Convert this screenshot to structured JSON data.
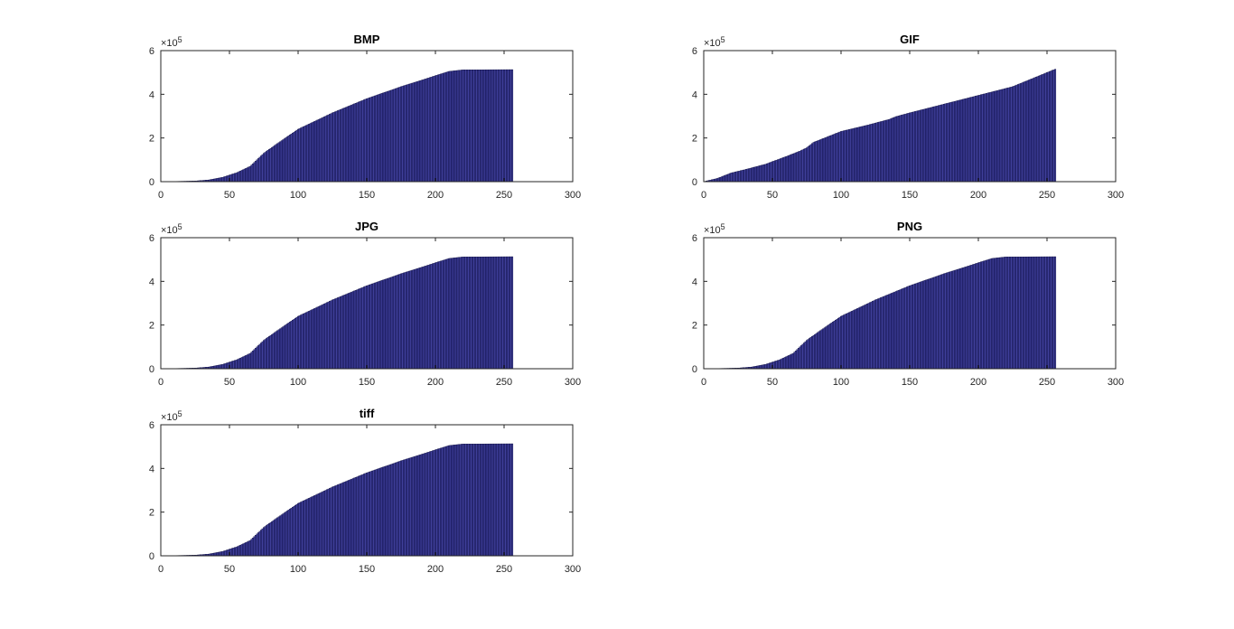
{
  "colors": {
    "bar_fill": "#3f3f9a",
    "bar_edge": "#000033",
    "axes": "#262626",
    "background": "#ffffff"
  },
  "chart_data": [
    {
      "type": "bar",
      "title": "BMP",
      "xlim": [
        0,
        300
      ],
      "ylim": [
        0,
        600000
      ],
      "xticks": [
        "0",
        "50",
        "100",
        "150",
        "200",
        "250",
        "300"
      ],
      "yticks": [
        "0",
        "2",
        "4",
        "6"
      ],
      "y_exponent_label": "×10",
      "y_exponent_power": "5",
      "grid": false,
      "bins": 256,
      "curve_points": [
        [
          0,
          0
        ],
        [
          25,
          3000
        ],
        [
          35,
          8000
        ],
        [
          45,
          20000
        ],
        [
          55,
          40000
        ],
        [
          65,
          70000
        ],
        [
          75,
          130000
        ],
        [
          85,
          175000
        ],
        [
          100,
          240000
        ],
        [
          125,
          315000
        ],
        [
          150,
          380000
        ],
        [
          175,
          435000
        ],
        [
          200,
          485000
        ],
        [
          210,
          505000
        ],
        [
          220,
          512000
        ],
        [
          256,
          513000
        ]
      ]
    },
    {
      "type": "bar",
      "title": "GIF",
      "xlim": [
        0,
        300
      ],
      "ylim": [
        0,
        600000
      ],
      "xticks": [
        "0",
        "50",
        "100",
        "150",
        "200",
        "250",
        "300"
      ],
      "yticks": [
        "0",
        "2",
        "4",
        "6"
      ],
      "y_exponent_label": "×10",
      "y_exponent_power": "5",
      "grid": false,
      "bins": 256,
      "curve_points": [
        [
          0,
          0
        ],
        [
          10,
          15000
        ],
        [
          20,
          40000
        ],
        [
          30,
          55000
        ],
        [
          45,
          80000
        ],
        [
          60,
          115000
        ],
        [
          70,
          140000
        ],
        [
          75,
          155000
        ],
        [
          80,
          180000
        ],
        [
          90,
          205000
        ],
        [
          100,
          230000
        ],
        [
          120,
          260000
        ],
        [
          135,
          285000
        ],
        [
          140,
          298000
        ],
        [
          150,
          315000
        ],
        [
          175,
          355000
        ],
        [
          200,
          395000
        ],
        [
          225,
          435000
        ],
        [
          256,
          515000
        ]
      ]
    },
    {
      "type": "bar",
      "title": "JPG",
      "xlim": [
        0,
        300
      ],
      "ylim": [
        0,
        600000
      ],
      "xticks": [
        "0",
        "50",
        "100",
        "150",
        "200",
        "250",
        "300"
      ],
      "yticks": [
        "0",
        "2",
        "4",
        "6"
      ],
      "y_exponent_label": "×10",
      "y_exponent_power": "5",
      "grid": false,
      "bins": 256,
      "curve_points": [
        [
          0,
          0
        ],
        [
          25,
          3000
        ],
        [
          35,
          8000
        ],
        [
          45,
          20000
        ],
        [
          55,
          40000
        ],
        [
          65,
          70000
        ],
        [
          75,
          130000
        ],
        [
          85,
          175000
        ],
        [
          100,
          240000
        ],
        [
          125,
          315000
        ],
        [
          150,
          380000
        ],
        [
          175,
          435000
        ],
        [
          200,
          485000
        ],
        [
          210,
          505000
        ],
        [
          220,
          512000
        ],
        [
          256,
          513000
        ]
      ]
    },
    {
      "type": "bar",
      "title": "PNG",
      "xlim": [
        0,
        300
      ],
      "ylim": [
        0,
        600000
      ],
      "xticks": [
        "0",
        "50",
        "100",
        "150",
        "200",
        "250",
        "300"
      ],
      "yticks": [
        "0",
        "2",
        "4",
        "6"
      ],
      "y_exponent_label": "×10",
      "y_exponent_power": "5",
      "grid": false,
      "bins": 256,
      "curve_points": [
        [
          0,
          0
        ],
        [
          25,
          3000
        ],
        [
          35,
          8000
        ],
        [
          45,
          20000
        ],
        [
          55,
          40000
        ],
        [
          65,
          70000
        ],
        [
          75,
          130000
        ],
        [
          85,
          175000
        ],
        [
          100,
          240000
        ],
        [
          125,
          315000
        ],
        [
          150,
          380000
        ],
        [
          175,
          435000
        ],
        [
          200,
          485000
        ],
        [
          210,
          505000
        ],
        [
          220,
          512000
        ],
        [
          256,
          513000
        ]
      ]
    },
    {
      "type": "bar",
      "title": "tiff",
      "xlim": [
        0,
        300
      ],
      "ylim": [
        0,
        600000
      ],
      "xticks": [
        "0",
        "50",
        "100",
        "150",
        "200",
        "250",
        "300"
      ],
      "yticks": [
        "0",
        "2",
        "4",
        "6"
      ],
      "y_exponent_label": "×10",
      "y_exponent_power": "5",
      "grid": false,
      "bins": 256,
      "curve_points": [
        [
          0,
          0
        ],
        [
          25,
          3000
        ],
        [
          35,
          8000
        ],
        [
          45,
          20000
        ],
        [
          55,
          40000
        ],
        [
          65,
          70000
        ],
        [
          75,
          130000
        ],
        [
          85,
          175000
        ],
        [
          100,
          240000
        ],
        [
          125,
          315000
        ],
        [
          150,
          380000
        ],
        [
          175,
          435000
        ],
        [
          200,
          485000
        ],
        [
          210,
          505000
        ],
        [
          220,
          512000
        ],
        [
          256,
          513000
        ]
      ]
    }
  ]
}
